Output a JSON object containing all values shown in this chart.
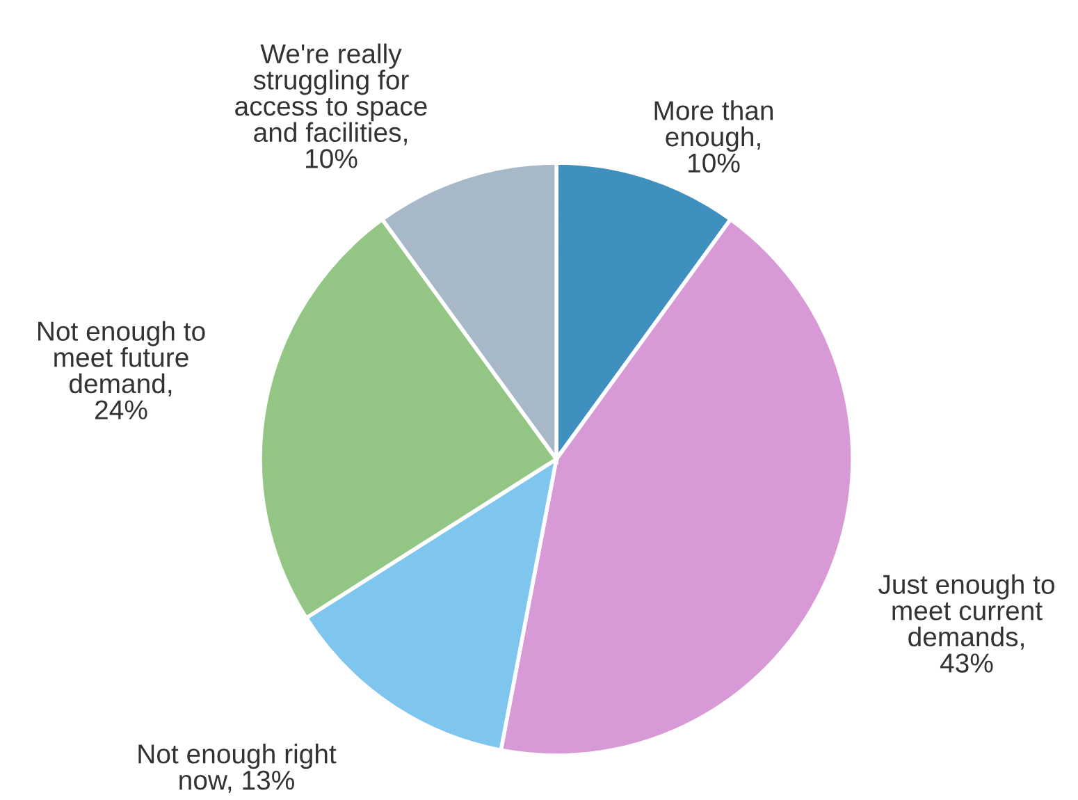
{
  "chart_data": {
    "type": "pie",
    "categories": [
      "More than\nenough,\n10%",
      "Just enough to\nmeet current\ndemands,\n43%",
      "Not enough right\nnow, 13%",
      "Not enough to\nmeet future\ndemand,\n24%",
      "We're really\nstruggling for\naccess to space\nand facilities,\n10%"
    ],
    "values": [
      10,
      43,
      13,
      24,
      10
    ],
    "colors": [
      "#3f8fbf",
      "#d79ad6",
      "#7fc6ee",
      "#93c685",
      "#a7b8c8"
    ]
  }
}
